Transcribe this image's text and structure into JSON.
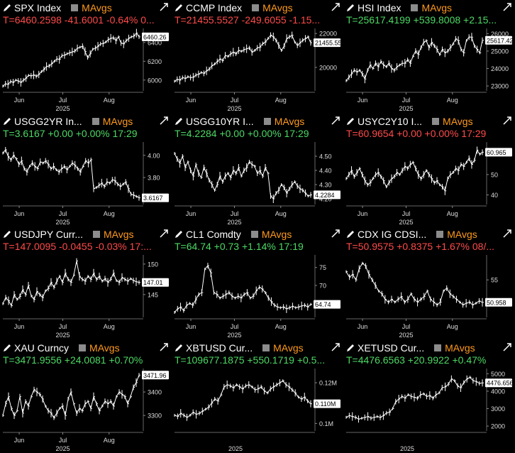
{
  "colors": {
    "bg": "#000000",
    "up": "#4cd964",
    "down": "#ff4a4a",
    "mavgs": "#ff9a1c",
    "price": "#ffffff"
  },
  "chart_data": [
    {
      "type": "line",
      "ticker": "SPX Index",
      "mavgs": "MAvgs",
      "quote": "T=6460.2598 -41.6001 -0.64% 0...",
      "direction": "down",
      "x_labels": [
        "Jun",
        "Jul",
        "Aug"
      ],
      "year": "2025",
      "y_ticks": [
        "6400",
        "6200",
        "6000"
      ],
      "y_tick_values": [
        6400,
        6200,
        6000
      ],
      "ylim": [
        5900,
        6550
      ],
      "last_label": "6460.26",
      "values": [
        5935,
        5960,
        5955,
        5985,
        5975,
        6000,
        5990,
        5975,
        6000,
        6020,
        6050,
        6045,
        6055,
        6040,
        6060,
        6090,
        6115,
        6145,
        6150,
        6175,
        6200,
        6225,
        6220,
        6260,
        6265,
        6280,
        6290,
        6300,
        6310,
        6340,
        6350,
        6360,
        6305,
        6240,
        6280,
        6330,
        6340,
        6360,
        6385,
        6390,
        6405,
        6430,
        6445,
        6450,
        6420,
        6460,
        6395,
        6385,
        6420,
        6445,
        6460,
        6470,
        6500,
        6460
      ]
    },
    {
      "type": "line",
      "ticker": "CCMP Index",
      "mavgs": "MAvgs",
      "quote": "T=21455.5527 -249.6055 -1.15...",
      "direction": "down",
      "x_labels": [
        "Jun",
        "Jul",
        "Aug"
      ],
      "year": "2025",
      "y_ticks": [
        "22000",
        "20000"
      ],
      "y_tick_values": [
        22000,
        20000
      ],
      "ylim": [
        18700,
        22300
      ],
      "last_label": "21455.55",
      "values": [
        19180,
        19300,
        19250,
        19400,
        19350,
        19450,
        19400,
        19420,
        19550,
        19600,
        19700,
        19650,
        19800,
        19900,
        20100,
        20200,
        20350,
        20500,
        20400,
        20700,
        20650,
        20800,
        20900,
        20800,
        21000,
        20950,
        21050,
        21100,
        21150,
        20900,
        21000,
        21150,
        21200,
        21400,
        21500,
        21700,
        21900,
        21800,
        21600,
        21300,
        21000,
        21250,
        21700,
        21800,
        21900,
        21500,
        21300,
        21450,
        21600,
        21700,
        21800,
        21455
      ]
    },
    {
      "type": "line",
      "ticker": "HSI Index",
      "mavgs": "MAvgs",
      "quote": "T=25617.4199 +539.8008 +2.15...",
      "direction": "up",
      "x_labels": [
        "Jun",
        "Jul",
        "Aug"
      ],
      "year": "2025",
      "y_ticks": [
        "26000",
        "25000",
        "24000",
        "23000"
      ],
      "y_tick_values": [
        26000,
        25000,
        24000,
        23000
      ],
      "ylim": [
        22800,
        26300
      ],
      "last_label": "25617.42",
      "values": [
        23300,
        23500,
        23700,
        23900,
        23800,
        23900,
        23700,
        23400,
        23900,
        24200,
        24000,
        24300,
        24100,
        24400,
        24200,
        24100,
        24300,
        24000,
        23900,
        24100,
        24200,
        24300,
        24300,
        24500,
        24300,
        24700,
        25000,
        24800,
        25200,
        25500,
        25600,
        25200,
        25500,
        25300,
        25100,
        24800,
        25100,
        24900,
        25000,
        25200,
        25400,
        25700,
        25600,
        25100,
        24900,
        25600,
        25800,
        25800,
        25300,
        25100,
        24900,
        25617
      ]
    },
    {
      "type": "line",
      "ticker": "USGG2YR In...",
      "mavgs": "MAvgs",
      "quote": "T=3.6167 +0.00 +0.00% 17:29",
      "direction": "up",
      "x_labels": [
        "Jun",
        "Jul",
        "Aug"
      ],
      "year": "2025",
      "y_ticks": [
        "4.00",
        "3.80"
      ],
      "y_tick_values": [
        4.0,
        3.8
      ],
      "ylim": [
        3.57,
        4.12
      ],
      "last_label": "3.6167",
      "values": [
        4.02,
        4.05,
        3.99,
        3.96,
        4.0,
        3.97,
        3.92,
        3.95,
        3.88,
        3.85,
        3.9,
        3.93,
        3.9,
        3.88,
        3.94,
        3.93,
        3.95,
        3.92,
        3.88,
        3.9,
        3.87,
        3.85,
        3.88,
        3.9,
        3.87,
        3.9,
        3.93,
        3.91,
        3.88,
        3.85,
        3.9,
        3.95,
        3.93,
        3.96,
        3.7,
        3.71,
        3.73,
        3.75,
        3.72,
        3.76,
        3.75,
        3.78,
        3.77,
        3.74,
        3.72,
        3.74,
        3.76,
        3.7,
        3.65,
        3.64,
        3.63,
        3.617
      ]
    },
    {
      "type": "line",
      "ticker": "USGG10YR I...",
      "mavgs": "MAvgs",
      "quote": "T=4.2284 +0.00 +0.00% 17:29",
      "direction": "up",
      "x_labels": [
        "Jun",
        "Jul",
        "Aug"
      ],
      "year": "2025",
      "y_ticks": [
        "4.50",
        "4.40",
        "4.30",
        "4.20"
      ],
      "y_tick_values": [
        4.5,
        4.4,
        4.3,
        4.2
      ],
      "ylim": [
        4.17,
        4.6
      ],
      "last_label": "4.2284",
      "values": [
        4.52,
        4.48,
        4.45,
        4.5,
        4.42,
        4.46,
        4.4,
        4.36,
        4.44,
        4.38,
        4.35,
        4.42,
        4.38,
        4.33,
        4.3,
        4.26,
        4.3,
        4.36,
        4.32,
        4.36,
        4.38,
        4.35,
        4.4,
        4.38,
        4.42,
        4.36,
        4.4,
        4.42,
        4.46,
        4.44,
        4.43,
        4.38,
        4.4,
        4.36,
        4.42,
        4.38,
        4.22,
        4.2,
        4.24,
        4.26,
        4.3,
        4.28,
        4.24,
        4.27,
        4.3,
        4.32,
        4.29,
        4.27,
        4.26,
        4.24,
        4.22,
        4.228
      ]
    },
    {
      "type": "line",
      "ticker": "USYC2Y10 I...",
      "mavgs": "MAvgs",
      "quote": "T=60.9654 +0.00 +0.00% 17:29",
      "direction": "down",
      "x_labels": [
        "Jun",
        "Jul",
        "Aug"
      ],
      "year": "2025",
      "y_ticks": [
        "50",
        "40"
      ],
      "y_tick_values": [
        50,
        40
      ],
      "ylim": [
        36,
        66
      ],
      "last_label": "60.965",
      "values": [
        48,
        50,
        52,
        49,
        51,
        53,
        50,
        47,
        45,
        46,
        48,
        50,
        51,
        49,
        47,
        44,
        46,
        48,
        49,
        51,
        50,
        52,
        54,
        53,
        55,
        56,
        53,
        50,
        48,
        50,
        52,
        50,
        48,
        46,
        47,
        45,
        44,
        42,
        48,
        50,
        51,
        53,
        52,
        55,
        54,
        56,
        58,
        55,
        57,
        62,
        60,
        61
      ]
    },
    {
      "type": "line",
      "ticker": "USDJPY Curr...",
      "mavgs": "MAvgs",
      "quote": "T=147.0095 -0.0455 -0.03% 17:...",
      "direction": "down",
      "x_labels": [
        "Jun",
        "Jul",
        "Aug"
      ],
      "year": "2025",
      "y_ticks": [
        "150",
        "145"
      ],
      "y_tick_values": [
        150,
        145
      ],
      "ylim": [
        141.5,
        151.5
      ],
      "last_label": "147.01",
      "values": [
        143.5,
        144.5,
        144.0,
        143.2,
        145.0,
        144.2,
        144.7,
        145.8,
        145.0,
        146.5,
        144.8,
        144.2,
        145.5,
        145.0,
        144.5,
        145.6,
        146.0,
        147.0,
        146.2,
        147.2,
        148.0,
        147.0,
        148.5,
        147.5,
        147.0,
        148.2,
        150.5,
        148.0,
        147.5,
        147.2,
        148.0,
        147.5,
        148.5,
        147.5,
        148.0,
        147.2,
        147.6,
        147.0,
        147.5,
        148.5,
        147.3,
        147.0,
        147.8,
        147.5,
        147.2,
        147.6,
        147.3,
        147.1,
        147.0
      ]
    },
    {
      "type": "line",
      "ticker": "CL1 Comdty",
      "mavgs": "MAvgs",
      "quote": "T=64.74 +0.73 +1.14% 17:19",
      "direction": "up",
      "x_labels": [
        "Jun",
        "Jul",
        "Aug"
      ],
      "year": "2025",
      "y_ticks": [
        "75",
        "70",
        "65"
      ],
      "y_tick_values": [
        75,
        70,
        65
      ],
      "ylim": [
        61.5,
        78.5
      ],
      "last_label": "64.74",
      "values": [
        62.5,
        63.5,
        64.0,
        63.0,
        64.5,
        65.0,
        64.5,
        66.0,
        67.5,
        68.0,
        74.5,
        75.5,
        73.5,
        68.0,
        67.5,
        66.5,
        67.0,
        67.5,
        68.0,
        67.0,
        66.5,
        67.0,
        66.5,
        67.5,
        68.0,
        66.5,
        67.0,
        68.5,
        69.5,
        69.0,
        68.0,
        66.5,
        65.5,
        64.5,
        64.0,
        63.8,
        64.0,
        63.5,
        63.8,
        64.2,
        63.8,
        64.0,
        64.3,
        64.5,
        64.0,
        64.74
      ]
    },
    {
      "type": "line",
      "ticker": "CDX IG CDSI...",
      "mavgs": "MAvgs",
      "quote": "T=50.9575 +0.8375 +1.67% 08/...",
      "direction": "down",
      "x_labels": [
        "Jun",
        "Jul",
        "Aug"
      ],
      "year": "2025",
      "y_ticks": [
        "55"
      ],
      "y_tick_values": [
        55
      ],
      "ylim": [
        48.5,
        59.5
      ],
      "last_label": "50.958",
      "values": [
        56.5,
        55.5,
        56.0,
        55.0,
        57.0,
        58.0,
        57.5,
        56.0,
        55.0,
        54.0,
        53.0,
        52.5,
        51.5,
        51.0,
        51.5,
        51.0,
        51.5,
        52.0,
        51.0,
        51.5,
        52.5,
        51.5,
        51.0,
        51.5,
        52.0,
        53.0,
        51.5,
        51.0,
        50.5,
        51.0,
        53.0,
        53.5,
        52.5,
        52.0,
        51.5,
        51.0,
        50.5,
        50.8,
        51.0,
        50.5,
        50.8,
        51.2,
        50.958
      ]
    },
    {
      "type": "line",
      "ticker": "XAU Curncy",
      "mavgs": "MAvgs",
      "quote": "T=3471.9556 +24.0081 +0.70%",
      "direction": "up",
      "x_labels": [
        "Jun",
        "Jul",
        "Aug"
      ],
      "year": "2025",
      "y_ticks": [
        "3400",
        "3300"
      ],
      "y_tick_values": [
        3400,
        3300
      ],
      "ylim": [
        3240,
        3500
      ],
      "last_label": "3471.96",
      "values": [
        3300,
        3350,
        3380,
        3330,
        3300,
        3320,
        3380,
        3310,
        3360,
        3340,
        3380,
        3410,
        3400,
        3390,
        3370,
        3340,
        3320,
        3310,
        3290,
        3310,
        3330,
        3340,
        3300,
        3370,
        3400,
        3350,
        3310,
        3330,
        3320,
        3350,
        3360,
        3330,
        3380,
        3350,
        3320,
        3340,
        3360,
        3350,
        3360,
        3340,
        3380,
        3400,
        3390,
        3380,
        3350,
        3380,
        3420,
        3440,
        3472
      ]
    },
    {
      "type": "line",
      "ticker": "XBTUSD Cur...",
      "mavgs": "MAvgs",
      "quote": "T=109677.1875 +550.1719 +0.5...",
      "direction": "up",
      "x_labels": [],
      "year": "2025",
      "y_ticks": [
        "0.12M",
        "0.1M"
      ],
      "y_tick_values": [
        120000,
        100000
      ],
      "ylim": [
        97000,
        127000
      ],
      "last_label": "0.110M",
      "values": [
        104000,
        103500,
        105000,
        104000,
        103000,
        104000,
        105500,
        104500,
        105000,
        106000,
        107000,
        108000,
        110000,
        112000,
        111000,
        114000,
        118000,
        119000,
        118500,
        117500,
        119000,
        118000,
        117000,
        118500,
        119000,
        118000,
        116500,
        117000,
        118000,
        116000,
        115000,
        117000,
        118000,
        119000,
        120000,
        121000,
        119000,
        118000,
        116500,
        115000,
        113000,
        112000,
        113000,
        111000,
        109677
      ]
    },
    {
      "type": "line",
      "ticker": "XETUSD Cur...",
      "mavgs": "MAvgs",
      "quote": "T=4476.6563 +20.9922 +0.47%",
      "direction": "up",
      "x_labels": [],
      "year": "2025",
      "y_ticks": [
        "5000",
        "4000",
        "3000",
        "2000"
      ],
      "y_tick_values": [
        5000,
        4000,
        3000,
        2000
      ],
      "ylim": [
        1800,
        5300
      ],
      "last_label": "4476.656",
      "values": [
        2500,
        2600,
        2550,
        2500,
        2400,
        2450,
        2500,
        2550,
        2450,
        2500,
        2550,
        2500,
        2600,
        2750,
        2800,
        3000,
        3400,
        3550,
        3700,
        3600,
        3800,
        3700,
        3650,
        3600,
        3800,
        3850,
        3700,
        3750,
        3600,
        3800,
        3900,
        4200,
        4250,
        4400,
        4700,
        4600,
        4300,
        4200,
        4500,
        4700,
        4800,
        4600,
        4550,
        4450,
        4477
      ]
    }
  ]
}
